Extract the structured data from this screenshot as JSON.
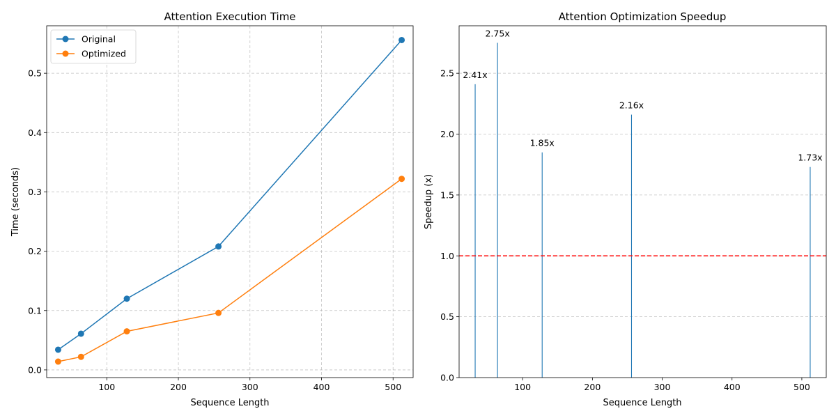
{
  "chart_data": [
    {
      "type": "line",
      "title": "Attention Execution Time",
      "xlabel": "Sequence Length",
      "ylabel": "Time (seconds)",
      "xlim": [
        16,
        528
      ],
      "ylim": [
        -0.013,
        0.58
      ],
      "xticks": [
        100,
        200,
        300,
        400,
        500
      ],
      "yticks": [
        0.0,
        0.1,
        0.2,
        0.3,
        0.4,
        0.5
      ],
      "ytick_labels": [
        "0.0",
        "0.1",
        "0.2",
        "0.3",
        "0.4",
        "0.5"
      ],
      "grid": true,
      "legend_position": "upper-left",
      "x": [
        32,
        64,
        128,
        256,
        512
      ],
      "series": [
        {
          "name": "Original",
          "color": "#1f77b4",
          "values": [
            0.034,
            0.061,
            0.12,
            0.208,
            0.556
          ]
        },
        {
          "name": "Optimized",
          "color": "#ff7f0e",
          "values": [
            0.014,
            0.022,
            0.065,
            0.096,
            0.322
          ]
        }
      ]
    },
    {
      "type": "bar",
      "title": "Attention Optimization Speedup",
      "xlabel": "Sequence Length",
      "ylabel": "Speedup (x)",
      "xlim": [
        9,
        535
      ],
      "ylim": [
        0,
        2.89
      ],
      "xticks": [
        100,
        200,
        300,
        400,
        500
      ],
      "yticks": [
        0.0,
        0.5,
        1.0,
        1.5,
        2.0,
        2.5
      ],
      "ytick_labels": [
        "0.0",
        "0.5",
        "1.0",
        "1.5",
        "2.0",
        "2.5"
      ],
      "grid": true,
      "reference_line": {
        "y": 1.0,
        "color": "#ff0000",
        "style": "dashed"
      },
      "bars": [
        {
          "x": 32,
          "value": 2.41,
          "label": "2.41x",
          "color": "#1f77b4"
        },
        {
          "x": 64,
          "value": 2.75,
          "label": "2.75x",
          "color": "#1f77b4"
        },
        {
          "x": 128,
          "value": 1.85,
          "label": "1.85x",
          "color": "#1f77b4"
        },
        {
          "x": 256,
          "value": 2.16,
          "label": "2.16x",
          "color": "#1f77b4"
        },
        {
          "x": 512,
          "value": 1.73,
          "label": "1.73x",
          "color": "#1f77b4"
        }
      ]
    }
  ]
}
